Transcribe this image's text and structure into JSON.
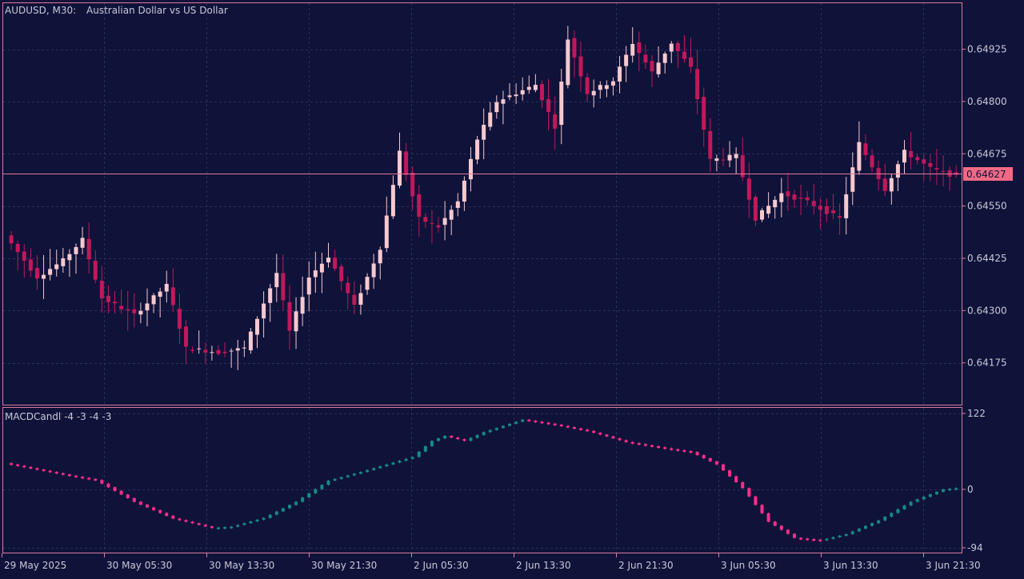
{
  "header": {
    "symbol_label": "AUDUSD, M30:",
    "description": "Australian Dollar vs US Dollar"
  },
  "indicator": {
    "label": "MACDCandl -4 -3 -4 -3"
  },
  "colors": {
    "background": "#0f1239",
    "frame": "#e07a9e",
    "grid": "#2a2f5c",
    "text": "#c8c8d8",
    "bull_candle": "#f6c9cf",
    "bear_candle": "#c2185b",
    "price_line": "#e07a9e",
    "price_tag_bg": "#f06a85",
    "macd_up": "#178a86",
    "macd_down": "#ff2e8c"
  },
  "chart_data": [
    {
      "type": "candlestick",
      "title": "AUDUSD, M30:  Australian Dollar vs US Dollar",
      "timeframe": "M30",
      "y_ticks": [
        "0.64925",
        "0.64800",
        "0.64675",
        "0.64550",
        "0.64425",
        "0.64300",
        "0.64175"
      ],
      "ylim": [
        0.64075,
        0.65035
      ],
      "current_price": "0.64627",
      "x_ticks": [
        "29 May 2025",
        "30 May 05:30",
        "30 May 13:30",
        "30 May 21:30",
        "2 Jun 05:30",
        "2 Jun 13:30",
        "2 Jun 21:30",
        "3 Jun 05:30",
        "3 Jun 13:30",
        "3 Jun 21:30"
      ],
      "waypoints": [
        [
          0,
          0.6448
        ],
        [
          5,
          0.6438
        ],
        [
          9,
          0.6442
        ],
        [
          12,
          0.6447
        ],
        [
          15,
          0.6433
        ],
        [
          20,
          0.6429
        ],
        [
          25,
          0.6436
        ],
        [
          28,
          0.6421
        ],
        [
          33,
          0.642
        ],
        [
          37,
          0.6421
        ],
        [
          42,
          0.6439
        ],
        [
          44,
          0.6425
        ],
        [
          47,
          0.6438
        ],
        [
          50,
          0.6443
        ],
        [
          54,
          0.6431
        ],
        [
          58,
          0.6445
        ],
        [
          61,
          0.6468
        ],
        [
          64,
          0.6452
        ],
        [
          67,
          0.645
        ],
        [
          70,
          0.6456
        ],
        [
          73,
          0.6471
        ],
        [
          76,
          0.648
        ],
        [
          79,
          0.6482
        ],
        [
          82,
          0.6484
        ],
        [
          85,
          0.6474
        ],
        [
          87,
          0.6495
        ],
        [
          90,
          0.6482
        ],
        [
          94,
          0.6485
        ],
        [
          97,
          0.6494
        ],
        [
          100,
          0.6487
        ],
        [
          103,
          0.6494
        ],
        [
          106,
          0.6488
        ],
        [
          109,
          0.6466
        ],
        [
          113,
          0.6467
        ],
        [
          116,
          0.6452
        ],
        [
          120,
          0.6458
        ],
        [
          124,
          0.6456
        ],
        [
          129,
          0.6452
        ],
        [
          132,
          0.647
        ],
        [
          136,
          0.6459
        ],
        [
          139,
          0.6468
        ],
        [
          143,
          0.6464
        ],
        [
          147,
          0.6462
        ]
      ]
    },
    {
      "type": "indicator",
      "name": "MACDCandl -4 -3 -4 -3",
      "y_ticks": [
        "122",
        "0",
        "-94"
      ],
      "ylim": [
        -94,
        122
      ],
      "waypoints": [
        [
          0,
          42
        ],
        [
          10,
          22
        ],
        [
          14,
          15
        ],
        [
          20,
          -20
        ],
        [
          26,
          -47
        ],
        [
          32,
          -62
        ],
        [
          35,
          -60
        ],
        [
          40,
          -46
        ],
        [
          45,
          -20
        ],
        [
          50,
          14
        ],
        [
          55,
          28
        ],
        [
          59,
          40
        ],
        [
          63,
          52
        ],
        [
          66,
          78
        ],
        [
          68,
          86
        ],
        [
          71,
          78
        ],
        [
          74,
          92
        ],
        [
          80,
          112
        ],
        [
          85,
          104
        ],
        [
          90,
          94
        ],
        [
          96,
          76
        ],
        [
          102,
          66
        ],
        [
          106,
          60
        ],
        [
          110,
          40
        ],
        [
          114,
          2
        ],
        [
          118,
          -52
        ],
        [
          122,
          -78
        ],
        [
          126,
          -82
        ],
        [
          130,
          -72
        ],
        [
          135,
          -50
        ],
        [
          140,
          -20
        ],
        [
          145,
          0
        ],
        [
          147,
          2
        ]
      ]
    }
  ]
}
